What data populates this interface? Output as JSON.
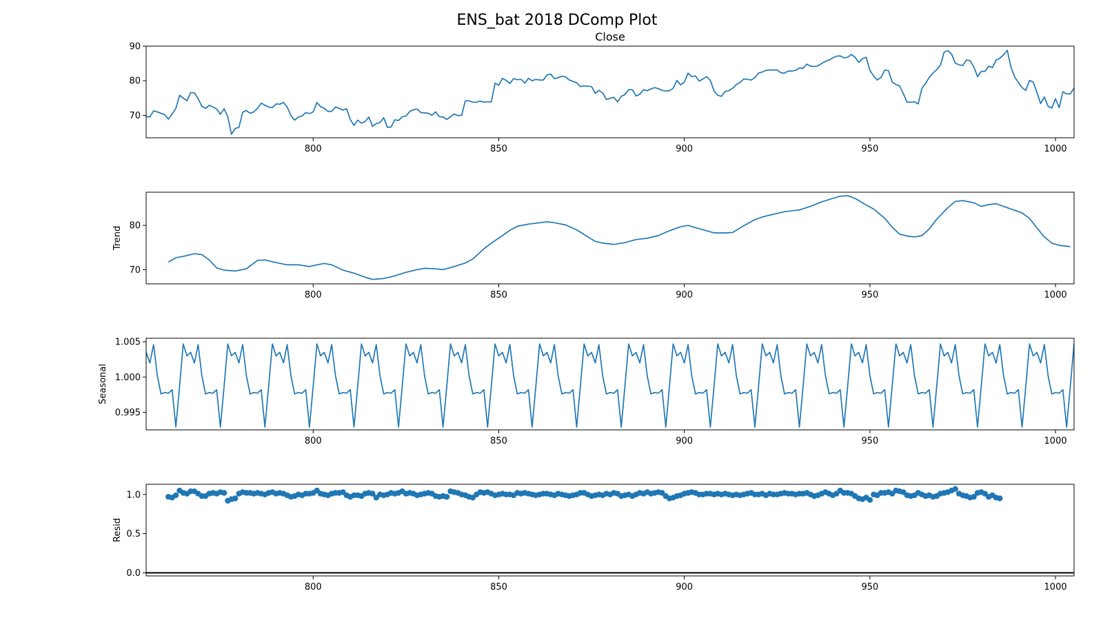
{
  "figure": {
    "title": "ENS_bat 2018 DComp Plot",
    "line_color": "#1f77b4"
  },
  "chart_data": [
    {
      "type": "line",
      "title": "Close",
      "xlabel": "",
      "ylabel": "",
      "xlim": [
        755,
        1005
      ],
      "ylim": [
        63.5,
        90
      ],
      "x_ticks": [
        800,
        850,
        900,
        950,
        1000
      ],
      "y_ticks": [
        70,
        80,
        90
      ],
      "x_start": 755,
      "values": [
        69.6,
        69.5,
        71.3,
        71.0,
        70.6,
        70.2,
        68.9,
        70.4,
        72.0,
        75.8,
        75.0,
        74.2,
        76.6,
        76.5,
        74.8,
        72.6,
        72.0,
        72.9,
        72.4,
        71.8,
        70.3,
        71.9,
        69.6,
        64.5,
        66.2,
        66.5,
        70.9,
        71.4,
        70.6,
        71.0,
        72.0,
        73.5,
        72.9,
        72.4,
        72.2,
        73.3,
        73.2,
        73.7,
        72.4,
        69.9,
        68.6,
        69.5,
        69.8,
        70.8,
        70.5,
        71.0,
        73.7,
        72.5,
        72.0,
        71.1,
        71.2,
        72.4,
        72.0,
        71.5,
        71.9,
        68.8,
        67.1,
        68.6,
        67.7,
        68.2,
        69.5,
        66.8,
        67.6,
        67.9,
        69.3,
        66.5,
        66.6,
        68.7,
        68.5,
        69.6,
        69.8,
        71.1,
        71.6,
        71.8,
        70.8,
        70.7,
        70.6,
        70.0,
        71.0,
        69.6,
        69.5,
        68.8,
        69.6,
        70.4,
        69.9,
        70.0,
        74.2,
        74.2,
        73.8,
        73.8,
        74.1,
        73.8,
        73.9,
        73.9,
        79.3,
        78.7,
        80.7,
        80.1,
        79.2,
        80.6,
        80.3,
        80.4,
        79.3,
        80.7,
        80.0,
        80.4,
        80.2,
        80.2,
        81.7,
        81.9,
        80.6,
        80.9,
        81.3,
        81.1,
        80.2,
        79.8,
        79.4,
        78.3,
        78.5,
        78.4,
        78.3,
        76.4,
        77.2,
        76.5,
        74.6,
        74.9,
        75.2,
        73.9,
        75.5,
        76.0,
        77.4,
        77.4,
        75.6,
        76.1,
        77.4,
        77.1,
        77.6,
        78.0,
        77.7,
        77.2,
        77.0,
        77.1,
        77.8,
        80.1,
        78.8,
        79.6,
        82.2,
        81.2,
        81.4,
        79.9,
        80.5,
        81.2,
        80.1,
        77.0,
        75.8,
        75.5,
        76.9,
        77.1,
        77.8,
        78.9,
        79.5,
        80.5,
        80.4,
        80.2,
        80.9,
        82.2,
        82.5,
        83.0,
        83.1,
        83.1,
        83.1,
        82.3,
        82.2,
        82.8,
        82.8,
        83.0,
        83.7,
        83.6,
        84.8,
        84.2,
        84.1,
        84.3,
        85.0,
        85.6,
        86.0,
        86.6,
        87.1,
        87.2,
        86.6,
        86.8,
        87.6,
        86.8,
        85.3,
        86.4,
        86.8,
        83.0,
        81.4,
        80.2,
        81.0,
        83.1,
        82.9,
        79.6,
        78.9,
        78.5,
        76.3,
        73.8,
        73.8,
        73.9,
        73.3,
        77.8,
        79.2,
        81.0,
        82.2,
        83.2,
        84.5,
        88.3,
        88.7,
        87.7,
        85.1,
        84.6,
        84.4,
        86.0,
        85.8,
        84.0,
        81.2,
        82.7,
        82.7,
        84.2,
        83.8,
        86.0,
        86.5,
        87.5,
        88.8,
        83.9,
        81.1,
        79.5,
        78.0,
        77.2,
        80.1,
        79.6,
        76.6,
        73.4,
        75.3,
        72.6,
        72.1,
        74.8,
        72.2,
        76.8,
        76.2,
        76.2,
        77.9
      ]
    },
    {
      "type": "line",
      "title": "",
      "xlabel": "",
      "ylabel": "Trend",
      "xlim": [
        755,
        1005
      ],
      "ylim": [
        66.8,
        87.5
      ],
      "x_ticks": [
        800,
        850,
        900,
        950,
        1000
      ],
      "y_ticks": [
        70,
        80
      ],
      "points": [
        [
          761,
          71.7
        ],
        [
          763,
          72.7
        ],
        [
          765,
          73.0
        ],
        [
          768,
          73.6
        ],
        [
          770,
          73.4
        ],
        [
          772,
          72.2
        ],
        [
          774,
          70.4
        ],
        [
          776,
          69.9
        ],
        [
          779,
          69.7
        ],
        [
          782,
          70.2
        ],
        [
          785,
          72.1
        ],
        [
          787,
          72.2
        ],
        [
          790,
          71.6
        ],
        [
          793,
          71.1
        ],
        [
          796,
          71.1
        ],
        [
          799,
          70.7
        ],
        [
          801,
          71.1
        ],
        [
          803,
          71.4
        ],
        [
          805,
          71.1
        ],
        [
          808,
          69.9
        ],
        [
          811,
          69.2
        ],
        [
          814,
          68.3
        ],
        [
          816,
          67.8
        ],
        [
          819,
          68.0
        ],
        [
          822,
          68.6
        ],
        [
          825,
          69.4
        ],
        [
          828,
          70.0
        ],
        [
          830,
          70.3
        ],
        [
          833,
          70.2
        ],
        [
          835,
          70.0
        ],
        [
          838,
          70.7
        ],
        [
          841,
          71.5
        ],
        [
          843,
          72.4
        ],
        [
          846,
          74.7
        ],
        [
          848,
          76.0
        ],
        [
          851,
          77.7
        ],
        [
          853,
          78.9
        ],
        [
          855,
          79.8
        ],
        [
          858,
          80.3
        ],
        [
          861,
          80.6
        ],
        [
          863,
          80.8
        ],
        [
          865,
          80.6
        ],
        [
          868,
          80.1
        ],
        [
          871,
          79.0
        ],
        [
          874,
          77.4
        ],
        [
          876,
          76.4
        ],
        [
          878,
          76.0
        ],
        [
          881,
          75.7
        ],
        [
          884,
          76.1
        ],
        [
          887,
          76.8
        ],
        [
          890,
          77.1
        ],
        [
          893,
          77.7
        ],
        [
          896,
          78.8
        ],
        [
          899,
          79.7
        ],
        [
          901,
          80.0
        ],
        [
          903,
          79.5
        ],
        [
          906,
          78.8
        ],
        [
          908,
          78.3
        ],
        [
          911,
          78.3
        ],
        [
          913,
          78.4
        ],
        [
          916,
          79.9
        ],
        [
          919,
          81.3
        ],
        [
          921,
          81.9
        ],
        [
          924,
          82.5
        ],
        [
          927,
          83.1
        ],
        [
          931,
          83.5
        ],
        [
          934,
          84.3
        ],
        [
          937,
          85.3
        ],
        [
          940,
          86.1
        ],
        [
          942,
          86.6
        ],
        [
          944,
          86.7
        ],
        [
          946,
          86.1
        ],
        [
          949,
          84.6
        ],
        [
          951,
          83.7
        ],
        [
          954,
          81.6
        ],
        [
          956,
          79.6
        ],
        [
          958,
          78.0
        ],
        [
          960,
          77.6
        ],
        [
          962,
          77.4
        ],
        [
          964,
          77.7
        ],
        [
          966,
          79.2
        ],
        [
          968,
          81.4
        ],
        [
          971,
          84.0
        ],
        [
          973,
          85.4
        ],
        [
          975,
          85.6
        ],
        [
          978,
          85.1
        ],
        [
          980,
          84.3
        ],
        [
          982,
          84.7
        ],
        [
          984,
          84.9
        ],
        [
          986,
          84.3
        ],
        [
          989,
          83.4
        ],
        [
          991,
          82.8
        ],
        [
          993,
          81.6
        ],
        [
          995,
          79.4
        ],
        [
          997,
          77.4
        ],
        [
          999,
          76.0
        ],
        [
          1001,
          75.5
        ],
        [
          1004,
          75.2
        ]
      ]
    },
    {
      "type": "line",
      "title": "",
      "xlabel": "",
      "ylabel": "Seasonal",
      "xlim": [
        755,
        1005
      ],
      "ylim": [
        0.9925,
        1.0055
      ],
      "x_ticks": [
        800,
        850,
        900,
        950,
        1000
      ],
      "y_ticks": [
        0.995,
        1.0,
        1.005
      ],
      "y_tick_labels": [
        "0.995",
        "1.000",
        "1.005"
      ],
      "period": 12,
      "x_start": 755,
      "pattern": [
        1.0035,
        1.002,
        1.0046,
        1.0002,
        0.9976,
        0.9978,
        0.9977,
        0.9982,
        0.9929,
        0.9987,
        1.0047,
        1.003
      ],
      "cycle_offset": 0
    },
    {
      "type": "scatter",
      "title": "",
      "xlabel": "",
      "ylabel": "Resid",
      "xlim": [
        755,
        1005
      ],
      "ylim": [
        -0.04,
        1.13
      ],
      "x_ticks": [
        800,
        850,
        900,
        950,
        1000
      ],
      "y_ticks": [
        0.0,
        0.5,
        1.0
      ],
      "y_tick_labels": [
        "0.0",
        "0.5",
        "1.0"
      ],
      "baseline": 0.0,
      "x_start": 761,
      "values": [
        0.97,
        0.96,
        0.99,
        1.05,
        1.02,
        1.01,
        1.04,
        1.04,
        1.01,
        0.98,
        0.98,
        1.01,
        1.02,
        1.01,
        1.03,
        1.02,
        0.92,
        0.94,
        0.95,
        1.01,
        1.03,
        1.02,
        1.02,
        1.01,
        1.02,
        1.01,
        1.0,
        1.02,
        1.03,
        1.01,
        1.02,
        1.01,
        0.99,
        0.97,
        0.98,
        1.0,
        0.99,
        1.01,
        1.01,
        1.02,
        1.05,
        1.01,
        1.0,
        0.99,
        1.01,
        1.02,
        1.02,
        1.03,
        0.99,
        0.97,
        0.99,
        0.99,
        0.98,
        1.01,
        1.02,
        1.01,
        0.96,
        1.0,
        0.99,
        1.0,
        1.02,
        1.01,
        1.02,
        1.04,
        1.01,
        1.02,
        1.01,
        0.99,
        1.0,
        1.01,
        1.02,
        1.01,
        0.98,
        0.97,
        0.98,
        0.97,
        1.04,
        1.03,
        1.02,
        1.0,
        0.99,
        0.97,
        0.96,
        1.0,
        1.03,
        1.02,
        1.03,
        1.01,
        0.99,
        1.0,
        1.01,
        1.0,
        1.0,
        0.99,
        1.02,
        1.01,
        1.02,
        1.01,
        1.0,
        0.99,
        1.0,
        1.01,
        1.01,
        1.0,
        0.99,
        1.01,
        1.0,
        0.99,
        0.98,
        0.99,
        1.0,
        1.02,
        1.02,
        1.0,
        0.98,
        0.99,
        1.0,
        0.99,
        1.01,
        1.0,
        1.02,
        1.01,
        0.98,
        0.99,
        1.0,
        0.98,
        1.0,
        1.02,
        1.01,
        1.03,
        1.01,
        1.02,
        1.03,
        1.02,
        0.98,
        0.95,
        0.96,
        0.98,
        0.99,
        1.01,
        1.02,
        1.03,
        1.02,
        1.0,
        1.0,
        1.01,
        1.01,
        1.0,
        1.01,
        1.0,
        1.01,
        1.0,
        0.99,
        1.0,
        0.99,
        1.0,
        1.01,
        1.02,
        1.0,
        1.0,
        1.01,
        0.99,
        1.01,
        1.0,
        1.0,
        1.01,
        1.02,
        1.01,
        1.01,
        1.0,
        1.01,
        1.01,
        1.02,
        1.0,
        0.98,
        0.99,
        1.01,
        1.03,
        1.01,
        0.99,
        1.01,
        1.05,
        1.02,
        1.02,
        1.01,
        0.98,
        0.95,
        0.94,
        0.96,
        0.93,
        1.0,
        0.99,
        1.02,
        1.02,
        1.03,
        1.01,
        1.05,
        1.04,
        1.03,
        0.99,
        0.98,
        0.99,
        1.02,
        1.0,
        0.98,
        0.99,
        0.97,
        0.98,
        1.01,
        1.02,
        1.03,
        1.05,
        1.07,
        1.01,
        0.99,
        0.98,
        0.96,
        0.97,
        1.02,
        1.03,
        1.01,
        0.97,
        0.99,
        0.96,
        0.95
      ]
    }
  ]
}
